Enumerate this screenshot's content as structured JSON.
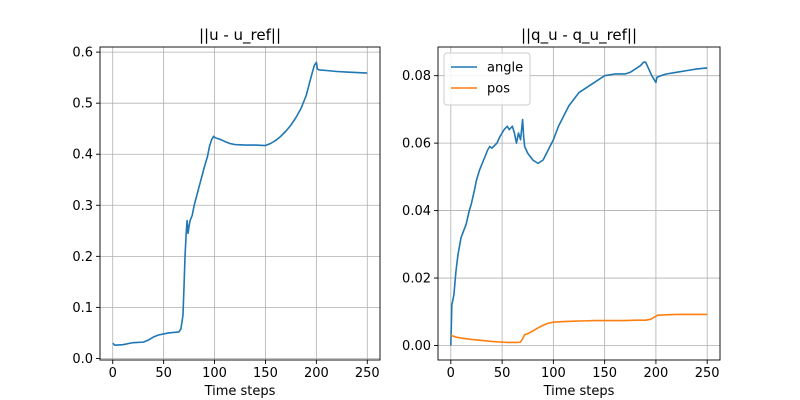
{
  "chart_data": [
    {
      "type": "line",
      "title": "||u - u_ref||",
      "xlabel": "Time steps",
      "ylabel": "",
      "xlim": [
        -12.5,
        262.5
      ],
      "ylim": [
        -0.003,
        0.61
      ],
      "xticks": [
        0,
        50,
        100,
        150,
        200,
        250
      ],
      "xtick_labels": [
        "0",
        "50",
        "100",
        "150",
        "200",
        "250"
      ],
      "yticks": [
        0.0,
        0.1,
        0.2,
        0.3,
        0.4,
        0.5,
        0.6
      ],
      "ytick_labels": [
        "0.0",
        "0.1",
        "0.2",
        "0.3",
        "0.4",
        "0.5",
        "0.6"
      ],
      "grid": true,
      "legend": null,
      "series": [
        {
          "color": "#1f77b4",
          "points": [
            [
              0,
              0.03
            ],
            [
              2,
              0.026
            ],
            [
              10,
              0.027
            ],
            [
              20,
              0.031
            ],
            [
              30,
              0.032
            ],
            [
              35,
              0.036
            ],
            [
              40,
              0.042
            ],
            [
              45,
              0.046
            ],
            [
              50,
              0.048
            ],
            [
              55,
              0.05
            ],
            [
              60,
              0.051
            ],
            [
              65,
              0.052
            ],
            [
              67,
              0.058
            ],
            [
              69,
              0.085
            ],
            [
              70,
              0.14
            ],
            [
              71,
              0.2
            ],
            [
              72,
              0.24
            ],
            [
              73,
              0.27
            ],
            [
              74,
              0.245
            ],
            [
              75,
              0.26
            ],
            [
              76,
              0.27
            ],
            [
              78,
              0.28
            ],
            [
              80,
              0.3
            ],
            [
              82,
              0.315
            ],
            [
              84,
              0.33
            ],
            [
              86,
              0.345
            ],
            [
              88,
              0.36
            ],
            [
              90,
              0.375
            ],
            [
              93,
              0.395
            ],
            [
              95,
              0.415
            ],
            [
              97,
              0.428
            ],
            [
              99,
              0.435
            ],
            [
              101,
              0.432
            ],
            [
              104,
              0.43
            ],
            [
              107,
              0.428
            ],
            [
              110,
              0.425
            ],
            [
              115,
              0.421
            ],
            [
              120,
              0.419
            ],
            [
              130,
              0.418
            ],
            [
              140,
              0.418
            ],
            [
              150,
              0.417
            ],
            [
              155,
              0.421
            ],
            [
              160,
              0.427
            ],
            [
              165,
              0.435
            ],
            [
              170,
              0.445
            ],
            [
              175,
              0.457
            ],
            [
              180,
              0.472
            ],
            [
              185,
              0.49
            ],
            [
              188,
              0.505
            ],
            [
              190,
              0.515
            ],
            [
              192,
              0.53
            ],
            [
              194,
              0.545
            ],
            [
              196,
              0.56
            ],
            [
              198,
              0.574
            ],
            [
              200,
              0.58
            ],
            [
              201,
              0.567
            ],
            [
              203,
              0.565
            ],
            [
              210,
              0.564
            ],
            [
              220,
              0.562
            ],
            [
              230,
              0.561
            ],
            [
              240,
              0.56
            ],
            [
              250,
              0.559
            ]
          ]
        }
      ]
    },
    {
      "type": "line",
      "title": "||q_u - q_u_ref||",
      "xlabel": "Time steps",
      "ylabel": "",
      "xlim": [
        -12.5,
        262.5
      ],
      "ylim": [
        -0.0043,
        0.0885
      ],
      "xticks": [
        0,
        50,
        100,
        150,
        200,
        250
      ],
      "xtick_labels": [
        "0",
        "50",
        "100",
        "150",
        "200",
        "250"
      ],
      "yticks": [
        0.0,
        0.02,
        0.04,
        0.06,
        0.08
      ],
      "ytick_labels": [
        "0.00",
        "0.02",
        "0.04",
        "0.06",
        "0.08"
      ],
      "grid": true,
      "legend": "top-left",
      "series": [
        {
          "name": "angle",
          "color": "#1f77b4",
          "points": [
            [
              0,
              0.0
            ],
            [
              1,
              0.012
            ],
            [
              3,
              0.015
            ],
            [
              5,
              0.022
            ],
            [
              7,
              0.027
            ],
            [
              10,
              0.032
            ],
            [
              15,
              0.036
            ],
            [
              18,
              0.04
            ],
            [
              20,
              0.042
            ],
            [
              23,
              0.046
            ],
            [
              25,
              0.049
            ],
            [
              28,
              0.052
            ],
            [
              32,
              0.055
            ],
            [
              36,
              0.058
            ],
            [
              38,
              0.059
            ],
            [
              40,
              0.0585
            ],
            [
              45,
              0.06
            ],
            [
              48,
              0.062
            ],
            [
              50,
              0.063
            ],
            [
              52,
              0.064
            ],
            [
              55,
              0.065
            ],
            [
              57,
              0.064
            ],
            [
              60,
              0.065
            ],
            [
              62,
              0.063
            ],
            [
              64,
              0.06
            ],
            [
              66,
              0.063
            ],
            [
              68,
              0.061
            ],
            [
              70,
              0.067
            ],
            [
              71,
              0.062
            ],
            [
              72,
              0.059
            ],
            [
              75,
              0.057
            ],
            [
              80,
              0.055
            ],
            [
              85,
              0.054
            ],
            [
              90,
              0.055
            ],
            [
              95,
              0.058
            ],
            [
              100,
              0.061
            ],
            [
              105,
              0.065
            ],
            [
              110,
              0.068
            ],
            [
              115,
              0.071
            ],
            [
              120,
              0.073
            ],
            [
              125,
              0.075
            ],
            [
              130,
              0.076
            ],
            [
              135,
              0.077
            ],
            [
              140,
              0.078
            ],
            [
              145,
              0.079
            ],
            [
              150,
              0.08
            ],
            [
              160,
              0.0805
            ],
            [
              170,
              0.0805
            ],
            [
              175,
              0.081
            ],
            [
              180,
              0.082
            ],
            [
              185,
              0.083
            ],
            [
              188,
              0.084
            ],
            [
              190,
              0.084
            ],
            [
              193,
              0.082
            ],
            [
              196,
              0.08
            ],
            [
              200,
              0.078
            ],
            [
              201,
              0.0795
            ],
            [
              205,
              0.08
            ],
            [
              210,
              0.0805
            ],
            [
              220,
              0.081
            ],
            [
              230,
              0.0815
            ],
            [
              240,
              0.082
            ],
            [
              250,
              0.0823
            ]
          ]
        },
        {
          "name": "pos",
          "color": "#ff7f0e",
          "points": [
            [
              0,
              0.003
            ],
            [
              5,
              0.0025
            ],
            [
              10,
              0.0022
            ],
            [
              20,
              0.0018
            ],
            [
              30,
              0.0015
            ],
            [
              40,
              0.0012
            ],
            [
              50,
              0.001
            ],
            [
              55,
              0.0009
            ],
            [
              60,
              0.0009
            ],
            [
              65,
              0.0009
            ],
            [
              68,
              0.001
            ],
            [
              70,
              0.002
            ],
            [
              72,
              0.0032
            ],
            [
              75,
              0.0035
            ],
            [
              80,
              0.0043
            ],
            [
              85,
              0.0052
            ],
            [
              90,
              0.006
            ],
            [
              95,
              0.0066
            ],
            [
              100,
              0.0069
            ],
            [
              110,
              0.0071
            ],
            [
              120,
              0.0072
            ],
            [
              130,
              0.0073
            ],
            [
              140,
              0.0074
            ],
            [
              150,
              0.0074
            ],
            [
              160,
              0.0074
            ],
            [
              170,
              0.0074
            ],
            [
              180,
              0.0075
            ],
            [
              190,
              0.0075
            ],
            [
              195,
              0.0078
            ],
            [
              200,
              0.0087
            ],
            [
              202,
              0.009
            ],
            [
              210,
              0.0091
            ],
            [
              220,
              0.0092
            ],
            [
              230,
              0.0092
            ],
            [
              240,
              0.0092
            ],
            [
              250,
              0.0092
            ]
          ]
        }
      ]
    }
  ]
}
